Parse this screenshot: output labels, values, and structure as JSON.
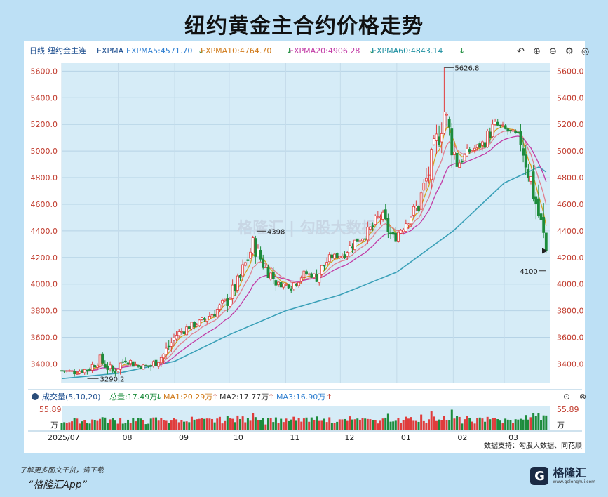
{
  "title": "纽约黄金主合约价格走势",
  "header": {
    "period": "日线",
    "instrument": "纽约金主连",
    "ema_label": "EXPMA",
    "ema": [
      {
        "label": "EXPMA5:4571.70",
        "color": "#2f7fd1"
      },
      {
        "label": "EXPMA10:4764.70",
        "color": "#d07a1a"
      },
      {
        "label": "EXPMA20:4906.28",
        "color": "#c23aa5"
      },
      {
        "label": "EXPMA60:4843.14",
        "color": "#1e8fa0"
      }
    ],
    "arrow": "↓"
  },
  "volume_header": {
    "label": "成交量(5,10,20)",
    "total": "总量:17.49万",
    "ma1": "MA1:20.29万",
    "ma2": "MA2:17.77万",
    "ma3": "MA3:16.90万",
    "arrow_up": "↑",
    "arrow_down": "↓",
    "vol_max": "55.89",
    "vol_unit": "万"
  },
  "annotations": {
    "high": "5626.8",
    "low_start": "3290.2",
    "peak_oct": "4398",
    "last_low": "4100"
  },
  "source": "数据支持：勾股大数据、同花顺",
  "watermark": "格隆汇 | 勾股大数据",
  "footer": {
    "note": "了解更多图文干货，请下载",
    "app": "“格隆汇App”",
    "logo": "格隆汇",
    "logo_sub": "www.gelonghui.com"
  },
  "colors": {
    "up": "#e03c3c",
    "down": "#1c8c3c",
    "ma5": "#d8a020",
    "ma10": "#e08090",
    "ma20": "#c23aa5",
    "ma60": "#3aa0b8"
  },
  "chart_data": {
    "type": "candlestick",
    "title": "纽约黄金主合约价格走势",
    "y_ticks": [
      "5600.0",
      "5400.0",
      "5200.0",
      "5000.0",
      "4800.0",
      "4600.0",
      "4400.0",
      "4200.0",
      "4000.0",
      "3800.0",
      "3600.0",
      "3400.0"
    ],
    "ylim": [
      3260,
      5660
    ],
    "x_ticks": [
      "2025/07",
      "08",
      "09",
      "10",
      "11",
      "12",
      "01",
      "02",
      "03"
    ],
    "weekly_closes": [
      {
        "x": "2025-07-01",
        "v": 3350
      },
      {
        "x": "2025-07-08",
        "v": 3340
      },
      {
        "x": "2025-07-15",
        "v": 3360
      },
      {
        "x": "2025-07-22",
        "v": 3430
      },
      {
        "x": "2025-07-29",
        "v": 3340
      },
      {
        "x": "2025-08-05",
        "v": 3440
      },
      {
        "x": "2025-08-12",
        "v": 3380
      },
      {
        "x": "2025-08-19",
        "v": 3385
      },
      {
        "x": "2025-08-26",
        "v": 3470
      },
      {
        "x": "2025-09-02",
        "v": 3620
      },
      {
        "x": "2025-09-09",
        "v": 3680
      },
      {
        "x": "2025-09-16",
        "v": 3720
      },
      {
        "x": "2025-09-23",
        "v": 3790
      },
      {
        "x": "2025-09-30",
        "v": 3880
      },
      {
        "x": "2025-10-07",
        "v": 4040
      },
      {
        "x": "2025-10-14",
        "v": 4300
      },
      {
        "x": "2025-10-21",
        "v": 4120
      },
      {
        "x": "2025-10-28",
        "v": 4000
      },
      {
        "x": "2025-11-04",
        "v": 3990
      },
      {
        "x": "2025-11-11",
        "v": 4080
      },
      {
        "x": "2025-11-18",
        "v": 4060
      },
      {
        "x": "2025-11-25",
        "v": 4200
      },
      {
        "x": "2025-12-02",
        "v": 4220
      },
      {
        "x": "2025-12-09",
        "v": 4320
      },
      {
        "x": "2025-12-16",
        "v": 4380
      },
      {
        "x": "2025-12-23",
        "v": 4520
      },
      {
        "x": "2025-12-30",
        "v": 4340
      },
      {
        "x": "2026-01-06",
        "v": 4470
      },
      {
        "x": "2026-01-13",
        "v": 4600
      },
      {
        "x": "2026-01-20",
        "v": 4900
      },
      {
        "x": "2026-01-27",
        "v": 5300
      },
      {
        "x": "2026-02-03",
        "v": 4900
      },
      {
        "x": "2026-02-10",
        "v": 5000
      },
      {
        "x": "2026-02-17",
        "v": 5050
      },
      {
        "x": "2026-02-24",
        "v": 5200
      },
      {
        "x": "2026-03-03",
        "v": 5150
      },
      {
        "x": "2026-03-10",
        "v": 5100
      },
      {
        "x": "2026-03-17",
        "v": 4700
      },
      {
        "x": "2026-03-24",
        "v": 4250
      }
    ],
    "expma60": [
      {
        "x": "2025-07-01",
        "v": 3290
      },
      {
        "x": "2025-08-01",
        "v": 3330
      },
      {
        "x": "2025-09-01",
        "v": 3420
      },
      {
        "x": "2025-10-01",
        "v": 3620
      },
      {
        "x": "2025-11-01",
        "v": 3800
      },
      {
        "x": "2025-12-01",
        "v": 3920
      },
      {
        "x": "2026-01-01",
        "v": 4090
      },
      {
        "x": "2026-02-01",
        "v": 4400
      },
      {
        "x": "2026-03-01",
        "v": 4760
      },
      {
        "x": "2026-03-20",
        "v": 4880
      },
      {
        "x": "2026-03-24",
        "v": 4843
      }
    ],
    "volume_ylim": [
      0,
      55.89
    ]
  }
}
